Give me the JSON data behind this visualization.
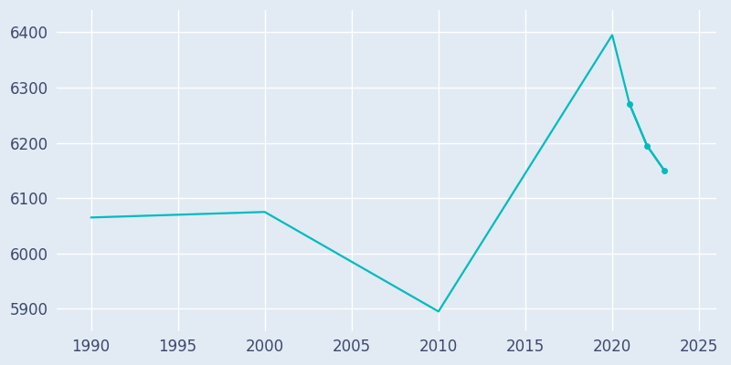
{
  "years": [
    1990,
    2000,
    2010,
    2020,
    2021,
    2022,
    2023
  ],
  "population": [
    6065,
    6075,
    5895,
    6395,
    6270,
    6195,
    6150
  ],
  "line_color": "#00BCBC",
  "background_color": "#E2EAF4",
  "plot_bg_color": "#E2EAF4",
  "grid_color": "#FFFFFF",
  "tick_color": "#3C4A6B",
  "xlim": [
    1988,
    2026
  ],
  "ylim": [
    5860,
    6440
  ],
  "yticks": [
    5900,
    6000,
    6100,
    6200,
    6300,
    6400
  ],
  "xticks": [
    1990,
    1995,
    2000,
    2005,
    2010,
    2015,
    2020,
    2025
  ],
  "linewidth": 1.6,
  "markersize": 4,
  "tick_fontsize": 12,
  "figsize": [
    8.0,
    4.0
  ],
  "dpi": 100
}
